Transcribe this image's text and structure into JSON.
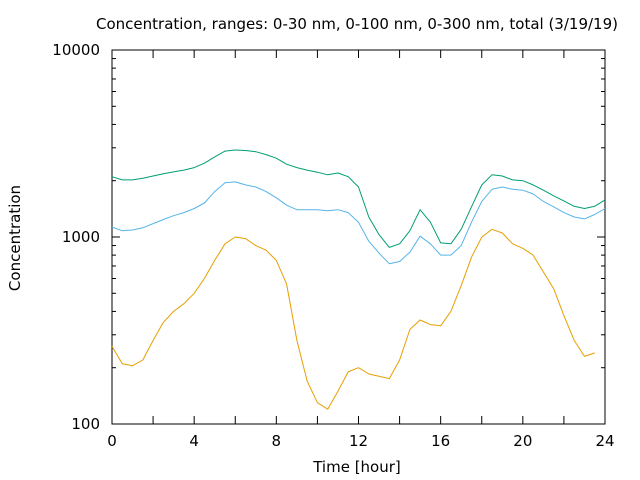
{
  "chart_data": {
    "type": "line",
    "title": "Concentration, ranges: 0-30 nm, 0-100 nm, 0-300 nm, total (3/19/19)",
    "xlabel": "Time [hour]",
    "ylabel": "Concentration",
    "xlim": [
      0,
      24
    ],
    "ylim": [
      100,
      10000
    ],
    "yscale": "log",
    "grid": false,
    "legend": "none",
    "x_ticks": [
      "0",
      "4",
      "8",
      "12",
      "16",
      "20",
      "24"
    ],
    "y_ticks": [
      "100",
      "1000",
      "10000"
    ],
    "series": [
      {
        "color": "#e69f00",
        "points": [
          [
            0,
            260
          ],
          [
            0.5,
            210
          ],
          [
            1,
            205
          ],
          [
            1.5,
            220
          ],
          [
            2,
            280
          ],
          [
            2.5,
            350
          ],
          [
            3,
            400
          ],
          [
            3.5,
            440
          ],
          [
            4,
            500
          ],
          [
            4.5,
            600
          ],
          [
            5,
            750
          ],
          [
            5.5,
            920
          ],
          [
            6,
            1000
          ],
          [
            6.5,
            980
          ],
          [
            7,
            900
          ],
          [
            7.5,
            850
          ],
          [
            8,
            750
          ],
          [
            8.5,
            560
          ],
          [
            9,
            280
          ],
          [
            9.5,
            170
          ],
          [
            10,
            130
          ],
          [
            10.5,
            120
          ],
          [
            11,
            150
          ],
          [
            11.5,
            190
          ],
          [
            12,
            200
          ],
          [
            12.5,
            185
          ],
          [
            13,
            180
          ],
          [
            13.5,
            175
          ],
          [
            14,
            220
          ],
          [
            14.5,
            320
          ],
          [
            15,
            360
          ],
          [
            15.5,
            340
          ],
          [
            16,
            335
          ],
          [
            16.5,
            400
          ],
          [
            17,
            550
          ],
          [
            17.5,
            780
          ],
          [
            18,
            1000
          ],
          [
            18.5,
            1100
          ],
          [
            19,
            1050
          ],
          [
            19.5,
            920
          ],
          [
            20,
            870
          ],
          [
            20.5,
            800
          ],
          [
            21,
            650
          ],
          [
            21.5,
            530
          ],
          [
            22,
            380
          ],
          [
            22.5,
            280
          ],
          [
            23,
            230
          ],
          [
            23.5,
            240
          ]
        ]
      },
      {
        "color": "#56b4e9",
        "points": [
          [
            0,
            1130
          ],
          [
            0.5,
            1080
          ],
          [
            1,
            1090
          ],
          [
            1.5,
            1120
          ],
          [
            2,
            1180
          ],
          [
            2.5,
            1240
          ],
          [
            3,
            1300
          ],
          [
            3.5,
            1350
          ],
          [
            4,
            1420
          ],
          [
            4.5,
            1520
          ],
          [
            5,
            1750
          ],
          [
            5.5,
            1950
          ],
          [
            6,
            1970
          ],
          [
            6.5,
            1900
          ],
          [
            7,
            1850
          ],
          [
            7.5,
            1750
          ],
          [
            8,
            1620
          ],
          [
            8.5,
            1480
          ],
          [
            9,
            1400
          ],
          [
            9.5,
            1400
          ],
          [
            10,
            1400
          ],
          [
            10.5,
            1380
          ],
          [
            11,
            1400
          ],
          [
            11.5,
            1350
          ],
          [
            12,
            1200
          ],
          [
            12.5,
            950
          ],
          [
            13,
            820
          ],
          [
            13.5,
            720
          ],
          [
            14,
            740
          ],
          [
            14.5,
            830
          ],
          [
            15,
            1010
          ],
          [
            15.5,
            920
          ],
          [
            16,
            800
          ],
          [
            16.5,
            800
          ],
          [
            17,
            900
          ],
          [
            17.5,
            1200
          ],
          [
            18,
            1550
          ],
          [
            18.5,
            1800
          ],
          [
            19,
            1850
          ],
          [
            19.5,
            1800
          ],
          [
            20,
            1780
          ],
          [
            20.5,
            1700
          ],
          [
            21,
            1550
          ],
          [
            21.5,
            1450
          ],
          [
            22,
            1350
          ],
          [
            22.5,
            1280
          ],
          [
            23,
            1250
          ],
          [
            23.5,
            1320
          ],
          [
            24,
            1420
          ]
        ]
      },
      {
        "color": "#009e73",
        "points": [
          [
            0,
            2100
          ],
          [
            0.5,
            2020
          ],
          [
            1,
            2020
          ],
          [
            1.5,
            2060
          ],
          [
            2,
            2120
          ],
          [
            2.5,
            2180
          ],
          [
            3,
            2230
          ],
          [
            3.5,
            2280
          ],
          [
            4,
            2350
          ],
          [
            4.5,
            2480
          ],
          [
            5,
            2680
          ],
          [
            5.5,
            2880
          ],
          [
            6,
            2920
          ],
          [
            6.5,
            2900
          ],
          [
            7,
            2860
          ],
          [
            7.5,
            2760
          ],
          [
            8,
            2640
          ],
          [
            8.5,
            2450
          ],
          [
            9,
            2350
          ],
          [
            9.5,
            2280
          ],
          [
            10,
            2220
          ],
          [
            10.5,
            2150
          ],
          [
            11,
            2200
          ],
          [
            11.5,
            2100
          ],
          [
            12,
            1850
          ],
          [
            12.5,
            1280
          ],
          [
            13,
            1030
          ],
          [
            13.5,
            880
          ],
          [
            14,
            920
          ],
          [
            14.5,
            1080
          ],
          [
            15,
            1400
          ],
          [
            15.5,
            1200
          ],
          [
            16,
            930
          ],
          [
            16.5,
            920
          ],
          [
            17,
            1100
          ],
          [
            17.5,
            1450
          ],
          [
            18,
            1900
          ],
          [
            18.5,
            2150
          ],
          [
            19,
            2120
          ],
          [
            19.5,
            2020
          ],
          [
            20,
            2000
          ],
          [
            20.5,
            1900
          ],
          [
            21,
            1780
          ],
          [
            21.5,
            1660
          ],
          [
            22,
            1560
          ],
          [
            22.5,
            1460
          ],
          [
            23,
            1420
          ],
          [
            23.5,
            1460
          ],
          [
            24,
            1580
          ]
        ]
      }
    ]
  }
}
